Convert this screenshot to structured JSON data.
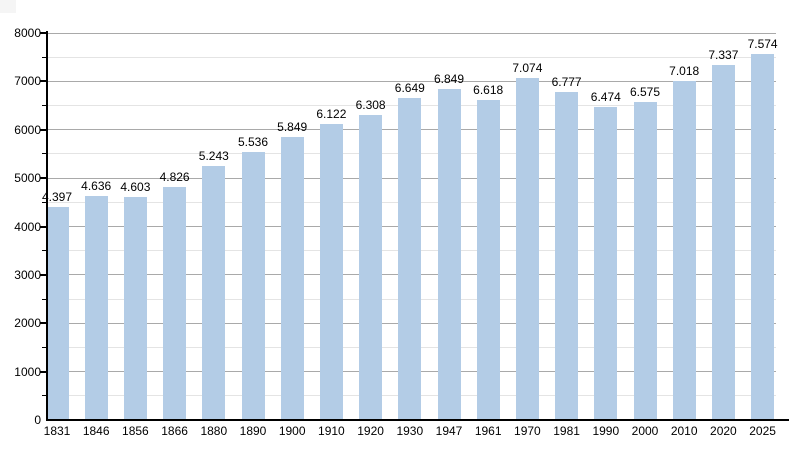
{
  "chart_data": {
    "type": "bar",
    "title": "",
    "xlabel": "",
    "ylabel": "",
    "categories": [
      "1831",
      "1846",
      "1856",
      "1866",
      "1880",
      "1890",
      "1900",
      "1910",
      "1920",
      "1930",
      "1947",
      "1961",
      "1970",
      "1981",
      "1990",
      "2000",
      "2010",
      "2020",
      "2025"
    ],
    "values": [
      4397,
      4636,
      4603,
      4826,
      5243,
      5536,
      5849,
      6122,
      6308,
      6649,
      6849,
      6618,
      7074,
      6777,
      6474,
      6575,
      7018,
      7337,
      7574
    ],
    "bar_labels": [
      "4.397",
      "4.636",
      "4.603",
      "4.826",
      "5.243",
      "5.536",
      "5.849",
      "6.122",
      "6.308",
      "6.649",
      "6.849",
      "6.618",
      "7.074",
      "6.777",
      "6.474",
      "6.575",
      "7.018",
      "7.337",
      "7.574"
    ],
    "ylim": [
      0,
      8000
    ],
    "ytick_step": 1000,
    "ytick_minor_step": 500,
    "ytick_labels": [
      "0",
      "1000",
      "2000",
      "3000",
      "4000",
      "5000",
      "6000",
      "7000",
      "8000"
    ],
    "grid": true,
    "legend_position": "none",
    "colors": {
      "bar_fill": "#b3cce6",
      "grid_major": "#a9a9a9",
      "grid_minor": "#e4e4e4",
      "axis": "#000000",
      "text": "#000000",
      "background": "#ffffff"
    }
  }
}
